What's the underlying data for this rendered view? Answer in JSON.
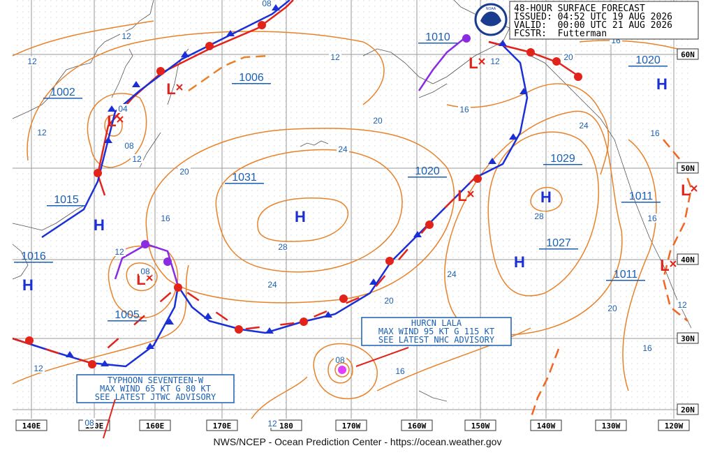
{
  "header": {
    "lines": [
      "48-HOUR SURFACE FORECAST",
      "ISSUED: 04:52 UTC 19 AUG 2026",
      "VALID:  00:00 UTC 21 AUG 2026",
      "FCSTR:  Futterman"
    ],
    "logo": "NOAA"
  },
  "footer": "NWS/NCEP - Ocean Prediction Center - https://ocean.weather.gov",
  "symbols": {
    "high": "H",
    "low": "L"
  },
  "pressure_labels": [
    "1002",
    "1006",
    "1010",
    "1020",
    "1015",
    "1031",
    "1020",
    "1029",
    "1011",
    "1016",
    "1005",
    "1027",
    "1011"
  ],
  "isobar_labels": [
    "12",
    "12",
    "12",
    "12",
    "04",
    "08",
    "12",
    "12",
    "20",
    "16",
    "12",
    "08",
    "28",
    "24",
    "20",
    "24",
    "16",
    "20",
    "16",
    "24",
    "16",
    "28",
    "24",
    "20",
    "16",
    "20",
    "16",
    "12",
    "16",
    "08",
    "12",
    "08",
    "12",
    "08"
  ],
  "longitudes": [
    "140E",
    "150E",
    "160E",
    "170E",
    "180",
    "170W",
    "160W",
    "150W",
    "140W",
    "130W",
    "120W"
  ],
  "latitudes": [
    "60N",
    "50N",
    "40N",
    "30N",
    "20N"
  ],
  "advisories": [
    {
      "lines": [
        "HURCN LALA",
        "MAX WIND 95 KT G 115 KT",
        "SEE LATEST NHC ADVISORY"
      ]
    },
    {
      "lines": [
        "TYPHOON SEVENTEEN-W",
        "MAX WIND 65 KT G 80 KT",
        "SEE LATEST JTWC ADVISORY"
      ]
    }
  ]
}
